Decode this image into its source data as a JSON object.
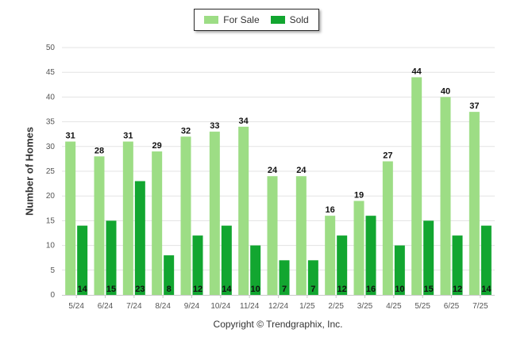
{
  "chart_data": {
    "type": "bar",
    "categories": [
      "5/24",
      "6/24",
      "7/24",
      "8/24",
      "9/24",
      "10/24",
      "11/24",
      "12/24",
      "1/25",
      "2/25",
      "3/25",
      "4/25",
      "5/25",
      "6/25",
      "7/25"
    ],
    "series": [
      {
        "name": "For Sale",
        "color": "#9ddd85",
        "values": [
          31,
          28,
          31,
          29,
          32,
          33,
          34,
          24,
          24,
          16,
          19,
          27,
          44,
          40,
          37
        ]
      },
      {
        "name": "Sold",
        "color": "#12a630",
        "values": [
          14,
          15,
          23,
          8,
          12,
          14,
          10,
          7,
          7,
          12,
          16,
          10,
          15,
          12,
          14
        ]
      }
    ],
    "ylabel": "Number of Homes",
    "xlabel": "",
    "ylim": [
      0,
      50
    ],
    "yticks": [
      0,
      5,
      10,
      15,
      20,
      25,
      30,
      35,
      40,
      45,
      50
    ],
    "grid": true,
    "legend": "top-center"
  },
  "legend": {
    "items": [
      {
        "label": "For Sale",
        "color": "#9ddd85"
      },
      {
        "label": "Sold",
        "color": "#12a630"
      }
    ]
  },
  "footer": {
    "copyright": "Copyright © Trendgraphix, Inc."
  }
}
